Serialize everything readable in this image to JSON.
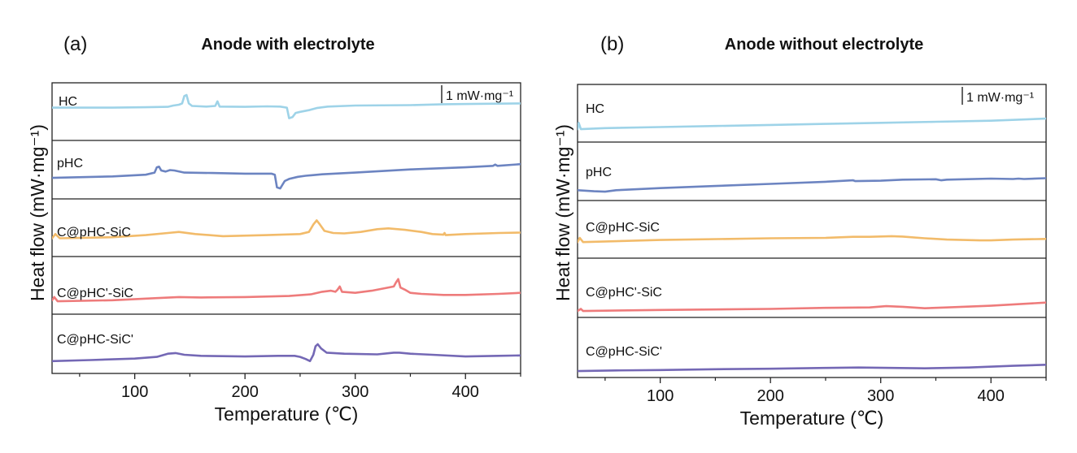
{
  "chart_data": [
    {
      "type": "line",
      "panel_label": "(a)",
      "title": "Anode with electrolyte",
      "xlabel": "Temperature (℃)",
      "ylabel": "Heat flow (mW·mg⁻¹)",
      "xlim": [
        25,
        450
      ],
      "xticks": [
        "100",
        "200",
        "300",
        "400"
      ],
      "scale_bar_label": "1 mW·mg⁻¹",
      "legend": "none",
      "grid": false,
      "series": [
        {
          "name": "HC",
          "color": "#9ed3e8",
          "points": [
            [
              25,
              -0.1
            ],
            [
              80,
              -0.1
            ],
            [
              110,
              -0.08
            ],
            [
              130,
              -0.06
            ],
            [
              135,
              0.0
            ],
            [
              140,
              0.04
            ],
            [
              143,
              0.1
            ],
            [
              145,
              0.45
            ],
            [
              147,
              0.5
            ],
            [
              149,
              0.1
            ],
            [
              152,
              -0.02
            ],
            [
              165,
              -0.05
            ],
            [
              173,
              -0.02
            ],
            [
              175,
              0.2
            ],
            [
              177,
              -0.05
            ],
            [
              200,
              -0.06
            ],
            [
              220,
              -0.04
            ],
            [
              232,
              -0.05
            ],
            [
              238,
              -0.1
            ],
            [
              240,
              -0.6
            ],
            [
              243,
              -0.55
            ],
            [
              246,
              -0.35
            ],
            [
              250,
              -0.3
            ],
            [
              258,
              -0.22
            ],
            [
              265,
              -0.12
            ],
            [
              275,
              -0.05
            ],
            [
              300,
              0.0
            ],
            [
              350,
              0.02
            ],
            [
              380,
              0.06
            ],
            [
              410,
              0.08
            ],
            [
              450,
              0.1
            ]
          ]
        },
        {
          "name": "pHC",
          "color": "#6c84c1",
          "points": [
            [
              25,
              -0.35
            ],
            [
              80,
              -0.28
            ],
            [
              110,
              -0.2
            ],
            [
              118,
              -0.1
            ],
            [
              120,
              0.15
            ],
            [
              122,
              0.18
            ],
            [
              124,
              0.0
            ],
            [
              128,
              -0.05
            ],
            [
              132,
              0.02
            ],
            [
              136,
              0.0
            ],
            [
              145,
              -0.1
            ],
            [
              170,
              -0.12
            ],
            [
              200,
              -0.15
            ],
            [
              224,
              -0.15
            ],
            [
              227,
              -0.2
            ],
            [
              229,
              -0.8
            ],
            [
              232,
              -0.85
            ],
            [
              236,
              -0.5
            ],
            [
              240,
              -0.4
            ],
            [
              248,
              -0.3
            ],
            [
              255,
              -0.25
            ],
            [
              270,
              -0.18
            ],
            [
              300,
              -0.1
            ],
            [
              350,
              0.05
            ],
            [
              400,
              0.15
            ],
            [
              425,
              0.22
            ],
            [
              427,
              0.28
            ],
            [
              429,
              0.22
            ],
            [
              450,
              0.3
            ]
          ]
        },
        {
          "name": "C@pHC-SiC",
          "color": "#f2bb6a",
          "points": [
            [
              25,
              -0.25
            ],
            [
              28,
              -0.05
            ],
            [
              32,
              -0.25
            ],
            [
              80,
              -0.2
            ],
            [
              110,
              -0.1
            ],
            [
              130,
              0.0
            ],
            [
              140,
              0.05
            ],
            [
              155,
              -0.05
            ],
            [
              180,
              -0.15
            ],
            [
              220,
              -0.1
            ],
            [
              250,
              -0.05
            ],
            [
              258,
              0.05
            ],
            [
              262,
              0.4
            ],
            [
              265,
              0.6
            ],
            [
              268,
              0.4
            ],
            [
              272,
              0.1
            ],
            [
              280,
              0.0
            ],
            [
              290,
              -0.02
            ],
            [
              305,
              0.05
            ],
            [
              320,
              0.18
            ],
            [
              330,
              0.22
            ],
            [
              345,
              0.15
            ],
            [
              360,
              0.05
            ],
            [
              370,
              -0.05
            ],
            [
              380,
              -0.08
            ],
            [
              381,
              0.0
            ],
            [
              382,
              -0.1
            ],
            [
              400,
              -0.05
            ],
            [
              430,
              0.0
            ],
            [
              450,
              0.02
            ]
          ]
        },
        {
          "name": "C@pHC'-SiC",
          "color": "#ee7b7b",
          "points": [
            [
              25,
              -0.3
            ],
            [
              27,
              -0.15
            ],
            [
              30,
              -0.35
            ],
            [
              80,
              -0.3
            ],
            [
              120,
              -0.2
            ],
            [
              140,
              -0.15
            ],
            [
              160,
              -0.17
            ],
            [
              200,
              -0.15
            ],
            [
              240,
              -0.1
            ],
            [
              260,
              -0.02
            ],
            [
              270,
              0.1
            ],
            [
              278,
              0.15
            ],
            [
              282,
              0.1
            ],
            [
              284,
              0.2
            ],
            [
              286,
              0.35
            ],
            [
              288,
              0.1
            ],
            [
              300,
              0.05
            ],
            [
              315,
              0.15
            ],
            [
              325,
              0.25
            ],
            [
              335,
              0.35
            ],
            [
              337,
              0.55
            ],
            [
              339,
              0.7
            ],
            [
              341,
              0.3
            ],
            [
              345,
              0.2
            ],
            [
              350,
              0.05
            ],
            [
              360,
              0.0
            ],
            [
              380,
              -0.05
            ],
            [
              400,
              -0.05
            ],
            [
              430,
              0.0
            ],
            [
              450,
              0.05
            ]
          ]
        },
        {
          "name": "C@pHC-SiC'",
          "color": "#7468b5",
          "points": [
            [
              25,
              -0.3
            ],
            [
              60,
              -0.25
            ],
            [
              100,
              -0.18
            ],
            [
              120,
              -0.1
            ],
            [
              130,
              0.05
            ],
            [
              137,
              0.08
            ],
            [
              145,
              0.0
            ],
            [
              160,
              -0.05
            ],
            [
              200,
              -0.08
            ],
            [
              230,
              -0.05
            ],
            [
              245,
              -0.05
            ],
            [
              250,
              -0.1
            ],
            [
              255,
              -0.2
            ],
            [
              259,
              -0.3
            ],
            [
              262,
              0.0
            ],
            [
              264,
              0.4
            ],
            [
              266,
              0.5
            ],
            [
              269,
              0.3
            ],
            [
              274,
              0.1
            ],
            [
              290,
              0.05
            ],
            [
              320,
              0.02
            ],
            [
              335,
              0.1
            ],
            [
              340,
              0.1
            ],
            [
              350,
              0.05
            ],
            [
              370,
              0.0
            ],
            [
              400,
              -0.08
            ],
            [
              430,
              -0.05
            ],
            [
              450,
              -0.03
            ]
          ]
        }
      ]
    },
    {
      "type": "line",
      "panel_label": "(b)",
      "title": "Anode without electrolyte",
      "xlabel": "Temperature (℃)",
      "ylabel": "Heat flow (mW·mg⁻¹)",
      "xlim": [
        25,
        450
      ],
      "xticks": [
        "100",
        "200",
        "300",
        "400"
      ],
      "scale_bar_label": "1 mW·mg⁻¹",
      "legend": "none",
      "grid": false,
      "series": [
        {
          "name": "HC",
          "color": "#9ed3e8",
          "points": [
            [
              25,
              -0.35
            ],
            [
              26,
              -0.05
            ],
            [
              28,
              -0.35
            ],
            [
              50,
              -0.3
            ],
            [
              100,
              -0.25
            ],
            [
              150,
              -0.2
            ],
            [
              200,
              -0.15
            ],
            [
              250,
              -0.1
            ],
            [
              300,
              -0.05
            ],
            [
              350,
              0.0
            ],
            [
              400,
              0.05
            ],
            [
              450,
              0.15
            ]
          ]
        },
        {
          "name": "pHC",
          "color": "#6c84c1",
          "points": [
            [
              25,
              -0.55
            ],
            [
              40,
              -0.6
            ],
            [
              50,
              -0.62
            ],
            [
              60,
              -0.55
            ],
            [
              100,
              -0.45
            ],
            [
              150,
              -0.35
            ],
            [
              200,
              -0.25
            ],
            [
              250,
              -0.15
            ],
            [
              275,
              -0.08
            ],
            [
              277,
              -0.12
            ],
            [
              300,
              -0.1
            ],
            [
              320,
              -0.05
            ],
            [
              350,
              -0.03
            ],
            [
              355,
              -0.08
            ],
            [
              360,
              -0.05
            ],
            [
              400,
              0.0
            ],
            [
              420,
              -0.02
            ],
            [
              425,
              0.0
            ],
            [
              430,
              -0.02
            ],
            [
              450,
              0.02
            ]
          ]
        },
        {
          "name": "C@pHC-SiC",
          "color": "#f2bb6a",
          "points": [
            [
              25,
              -0.2
            ],
            [
              27,
              0.0
            ],
            [
              30,
              -0.2
            ],
            [
              100,
              -0.1
            ],
            [
              200,
              -0.02
            ],
            [
              250,
              0.0
            ],
            [
              275,
              0.05
            ],
            [
              290,
              0.05
            ],
            [
              310,
              0.08
            ],
            [
              320,
              0.06
            ],
            [
              340,
              -0.02
            ],
            [
              360,
              -0.08
            ],
            [
              390,
              -0.12
            ],
            [
              400,
              -0.12
            ],
            [
              420,
              -0.08
            ],
            [
              450,
              -0.05
            ]
          ]
        },
        {
          "name": "C@pHC'-SiC",
          "color": "#ee7b7b",
          "points": [
            [
              25,
              -0.35
            ],
            [
              28,
              -0.25
            ],
            [
              30,
              -0.35
            ],
            [
              100,
              -0.3
            ],
            [
              200,
              -0.25
            ],
            [
              250,
              -0.2
            ],
            [
              290,
              -0.18
            ],
            [
              305,
              -0.12
            ],
            [
              320,
              -0.15
            ],
            [
              340,
              -0.22
            ],
            [
              360,
              -0.18
            ],
            [
              400,
              -0.1
            ],
            [
              450,
              0.05
            ]
          ]
        },
        {
          "name": "C@pHC-SiC'",
          "color": "#7468b5",
          "points": [
            [
              25,
              -0.35
            ],
            [
              60,
              -0.32
            ],
            [
              100,
              -0.3
            ],
            [
              150,
              -0.26
            ],
            [
              200,
              -0.24
            ],
            [
              250,
              -0.2
            ],
            [
              280,
              -0.18
            ],
            [
              310,
              -0.2
            ],
            [
              340,
              -0.22
            ],
            [
              380,
              -0.18
            ],
            [
              420,
              -0.1
            ],
            [
              450,
              -0.05
            ]
          ]
        }
      ]
    }
  ]
}
